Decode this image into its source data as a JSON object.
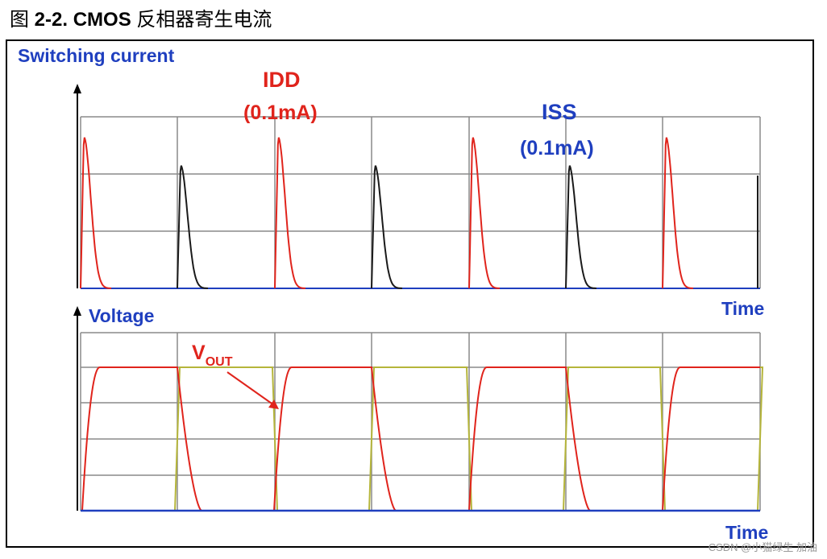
{
  "caption": {
    "prefix": "图 ",
    "figure": "2-2. CMOS",
    "rest": " 反相器寄生电流"
  },
  "labels": {
    "top_axis": "Switching current",
    "idd_name": "IDD",
    "idd_value": "(0.1mA)",
    "iss_name": "ISS",
    "iss_value": "(0.1mA)",
    "time_top": "Time",
    "bottom_axis": "Voltage",
    "vout_main": "V",
    "vout_sub": "OUT",
    "time_bottom": "Time"
  },
  "watermark": "CSDN @小猫绿生 加油",
  "colors": {
    "idd": "#e0241c",
    "iss": "#1a1a1a",
    "vout": "#e0241c",
    "vin": "#b5b53a",
    "baseline": "#1f3fbf",
    "grid": "#8a8a8a",
    "label_blue": "#1f3fbf",
    "label_red": "#e0241c"
  }
}
